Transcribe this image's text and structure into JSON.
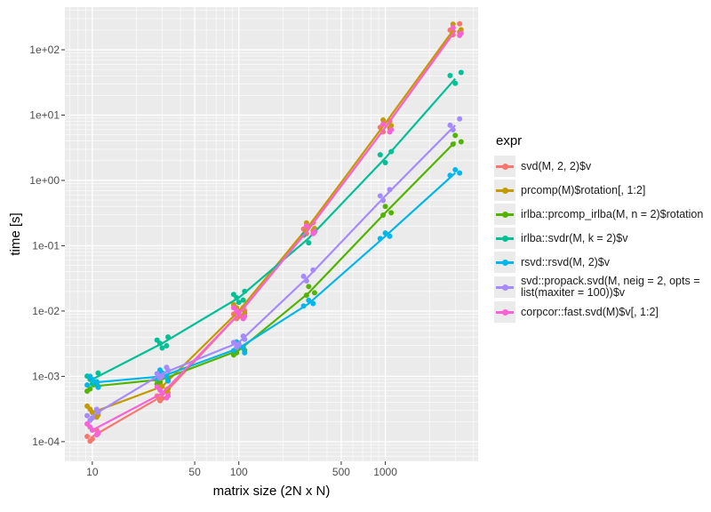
{
  "chart_data": {
    "type": "line",
    "xlabel": "matrix size (2N x N)",
    "ylabel": "time [s]",
    "xscale": "log10",
    "yscale": "log10",
    "xlim": [
      6.5,
      4300
    ],
    "ylim": [
      5e-05,
      450
    ],
    "xticks": [
      10,
      50,
      100,
      500,
      1000
    ],
    "xtick_labels": [
      "10",
      "50",
      "100",
      "500",
      "1000"
    ],
    "yticks": [
      0.0001,
      0.001,
      0.01,
      0.1,
      1,
      10,
      100
    ],
    "ytick_labels": [
      "1e-04",
      "1e-03",
      "1e-02",
      "1e-01",
      "1e+00",
      "1e+01",
      "1e+02"
    ],
    "grid": true,
    "legend_title": "expr",
    "legend_position": "right",
    "x": [
      10,
      30,
      100,
      300,
      1000,
      3000
    ],
    "series": [
      {
        "name": "svd(M, 2, 2)$v",
        "color": "#F8766D",
        "values": [
          0.00012,
          0.0005,
          0.009,
          0.18,
          6.5,
          200
        ]
      },
      {
        "name": "prcomp(M)$rotation[, 1:2]",
        "color": "#C49A00",
        "values": [
          0.00028,
          0.0007,
          0.01,
          0.2,
          7.5,
          220
        ]
      },
      {
        "name": "irlba::prcomp_irlba(M, n = 2)$rotation",
        "color": "#53B400",
        "values": [
          0.0007,
          0.0009,
          0.0025,
          0.019,
          0.32,
          3.9
        ]
      },
      {
        "name": "irlba::svdr(M, k = 2)$v",
        "color": "#00C094",
        "values": [
          0.0009,
          0.0032,
          0.016,
          0.13,
          2.2,
          36
        ]
      },
      {
        "name": "rsvd::rsvd(M, 2)$v",
        "color": "#00B6EB",
        "values": [
          0.0008,
          0.001,
          0.0027,
          0.013,
          0.14,
          1.3
        ]
      },
      {
        "name": "svd::propack.svd(M, neig = 2, opts = list(maxiter = 100))$v",
        "color": "#A58AFF",
        "values": [
          0.00025,
          0.0011,
          0.0033,
          0.034,
          0.58,
          7
        ]
      },
      {
        "name": "corpcor::fast.svd(M)$v[, 1:2]",
        "color": "#FB61D7",
        "values": [
          0.00015,
          0.00055,
          0.009,
          0.18,
          6.5,
          195
        ]
      }
    ]
  }
}
